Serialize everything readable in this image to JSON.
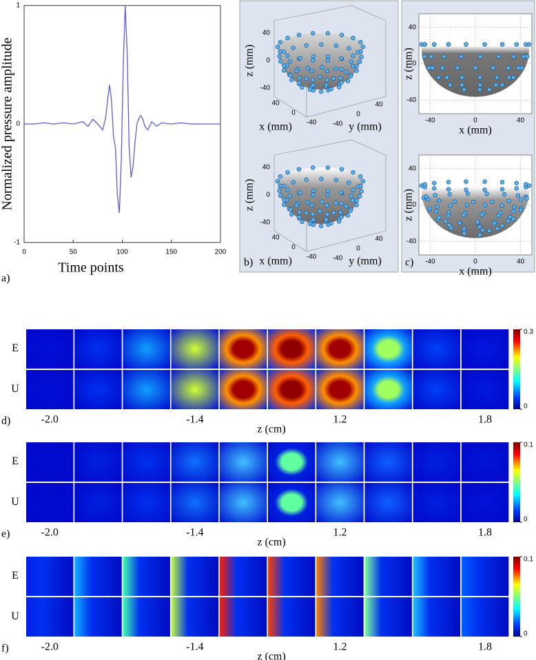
{
  "chart_data": [
    {
      "type": "line",
      "panel": "a)",
      "x_label": "Time points",
      "y_label": "Normalized pressure amplitude",
      "xlim": [
        0,
        200
      ],
      "xticks": [
        0,
        50,
        100,
        150,
        200
      ],
      "ylim": [
        -1,
        1
      ],
      "yticks": [
        -1,
        0,
        1
      ],
      "x": [
        0,
        10,
        20,
        30,
        40,
        50,
        60,
        65,
        70,
        75,
        80,
        83,
        85,
        87,
        89,
        91,
        93,
        95,
        97,
        99,
        101,
        103,
        105,
        107,
        109,
        111,
        113,
        115,
        117,
        119,
        121,
        123,
        126,
        130,
        135,
        140,
        150,
        160,
        170,
        180,
        190,
        200
      ],
      "series": [
        {
          "color": "#5b5bd6",
          "values": [
            0,
            0,
            0.01,
            0,
            0.01,
            0,
            0.02,
            -0.02,
            0.04,
            0,
            -0.05,
            0.05,
            0.2,
            0.33,
            0.2,
            -0.1,
            -0.2,
            -0.6,
            -0.75,
            -0.3,
            0.5,
            1.0,
            0.6,
            -0.2,
            -0.45,
            -0.35,
            -0.15,
            0,
            0.05,
            0.07,
            0.04,
            -0.02,
            -0.05,
            0.02,
            -0.02,
            0.01,
            0,
            0.01,
            0,
            0,
            0,
            0
          ]
        }
      ]
    },
    {
      "type": "scatter3d",
      "panel": "b)",
      "views": [
        {
          "z_label": "z (mm)",
          "x_label": "x (mm)",
          "y_label": "y (mm)",
          "zticks": [
            40,
            0,
            -40
          ],
          "xticks": [
            40,
            0,
            -40
          ],
          "yticks": [
            -40,
            0,
            40
          ]
        },
        {
          "z_label": "z (mm)",
          "x_label": "x (mm)",
          "y_label": "y (mm)",
          "zticks": [
            40,
            0,
            -40
          ],
          "xticks": [
            40,
            0,
            -40
          ],
          "yticks": [
            -40,
            0,
            40
          ]
        }
      ]
    },
    {
      "type": "projection",
      "panel": "c)",
      "views": [
        {
          "z_label": "z (mm)",
          "x_label": "x (mm)",
          "zlim": [
            -55,
            55
          ],
          "zticks": [
            40,
            0,
            -40
          ],
          "xlim": [
            -50,
            50
          ],
          "xticks": [
            -40,
            0,
            40
          ]
        },
        {
          "z_label": "z (mm)",
          "x_label": "x (mm)",
          "zlim": [
            -55,
            55
          ],
          "zticks": [
            40,
            0,
            -40
          ],
          "xlim": [
            -50,
            50
          ],
          "xticks": [
            -40,
            0,
            40
          ]
        }
      ]
    },
    {
      "type": "heatmap",
      "panel": "d)",
      "rows": [
        "E",
        "U"
      ],
      "column_labels": [
        "-2.0",
        null,
        null,
        "-1.4",
        null,
        null,
        "1.2",
        null,
        null,
        "1.8"
      ],
      "x_label": "z (cm)",
      "clim": [
        0,
        0.3
      ],
      "cticks": [
        0,
        0.3
      ]
    },
    {
      "type": "heatmap",
      "panel": "e)",
      "rows": [
        "E",
        "U"
      ],
      "column_labels": [
        "-2.0",
        null,
        null,
        "-1.4",
        null,
        null,
        "1.2",
        null,
        null,
        "1.8"
      ],
      "x_label": "z (cm)",
      "clim": [
        0,
        0.1
      ],
      "cticks": [
        0,
        0.1
      ]
    },
    {
      "type": "heatmap",
      "panel": "f)",
      "rows": [
        "E",
        "U"
      ],
      "column_labels": [
        "-2.0",
        null,
        null,
        "-1.4",
        null,
        null,
        "1.2",
        null,
        null,
        "1.8"
      ],
      "x_label": "z (cm)",
      "clim": [
        0,
        0.1
      ],
      "cticks": [
        0,
        0.1
      ]
    }
  ]
}
